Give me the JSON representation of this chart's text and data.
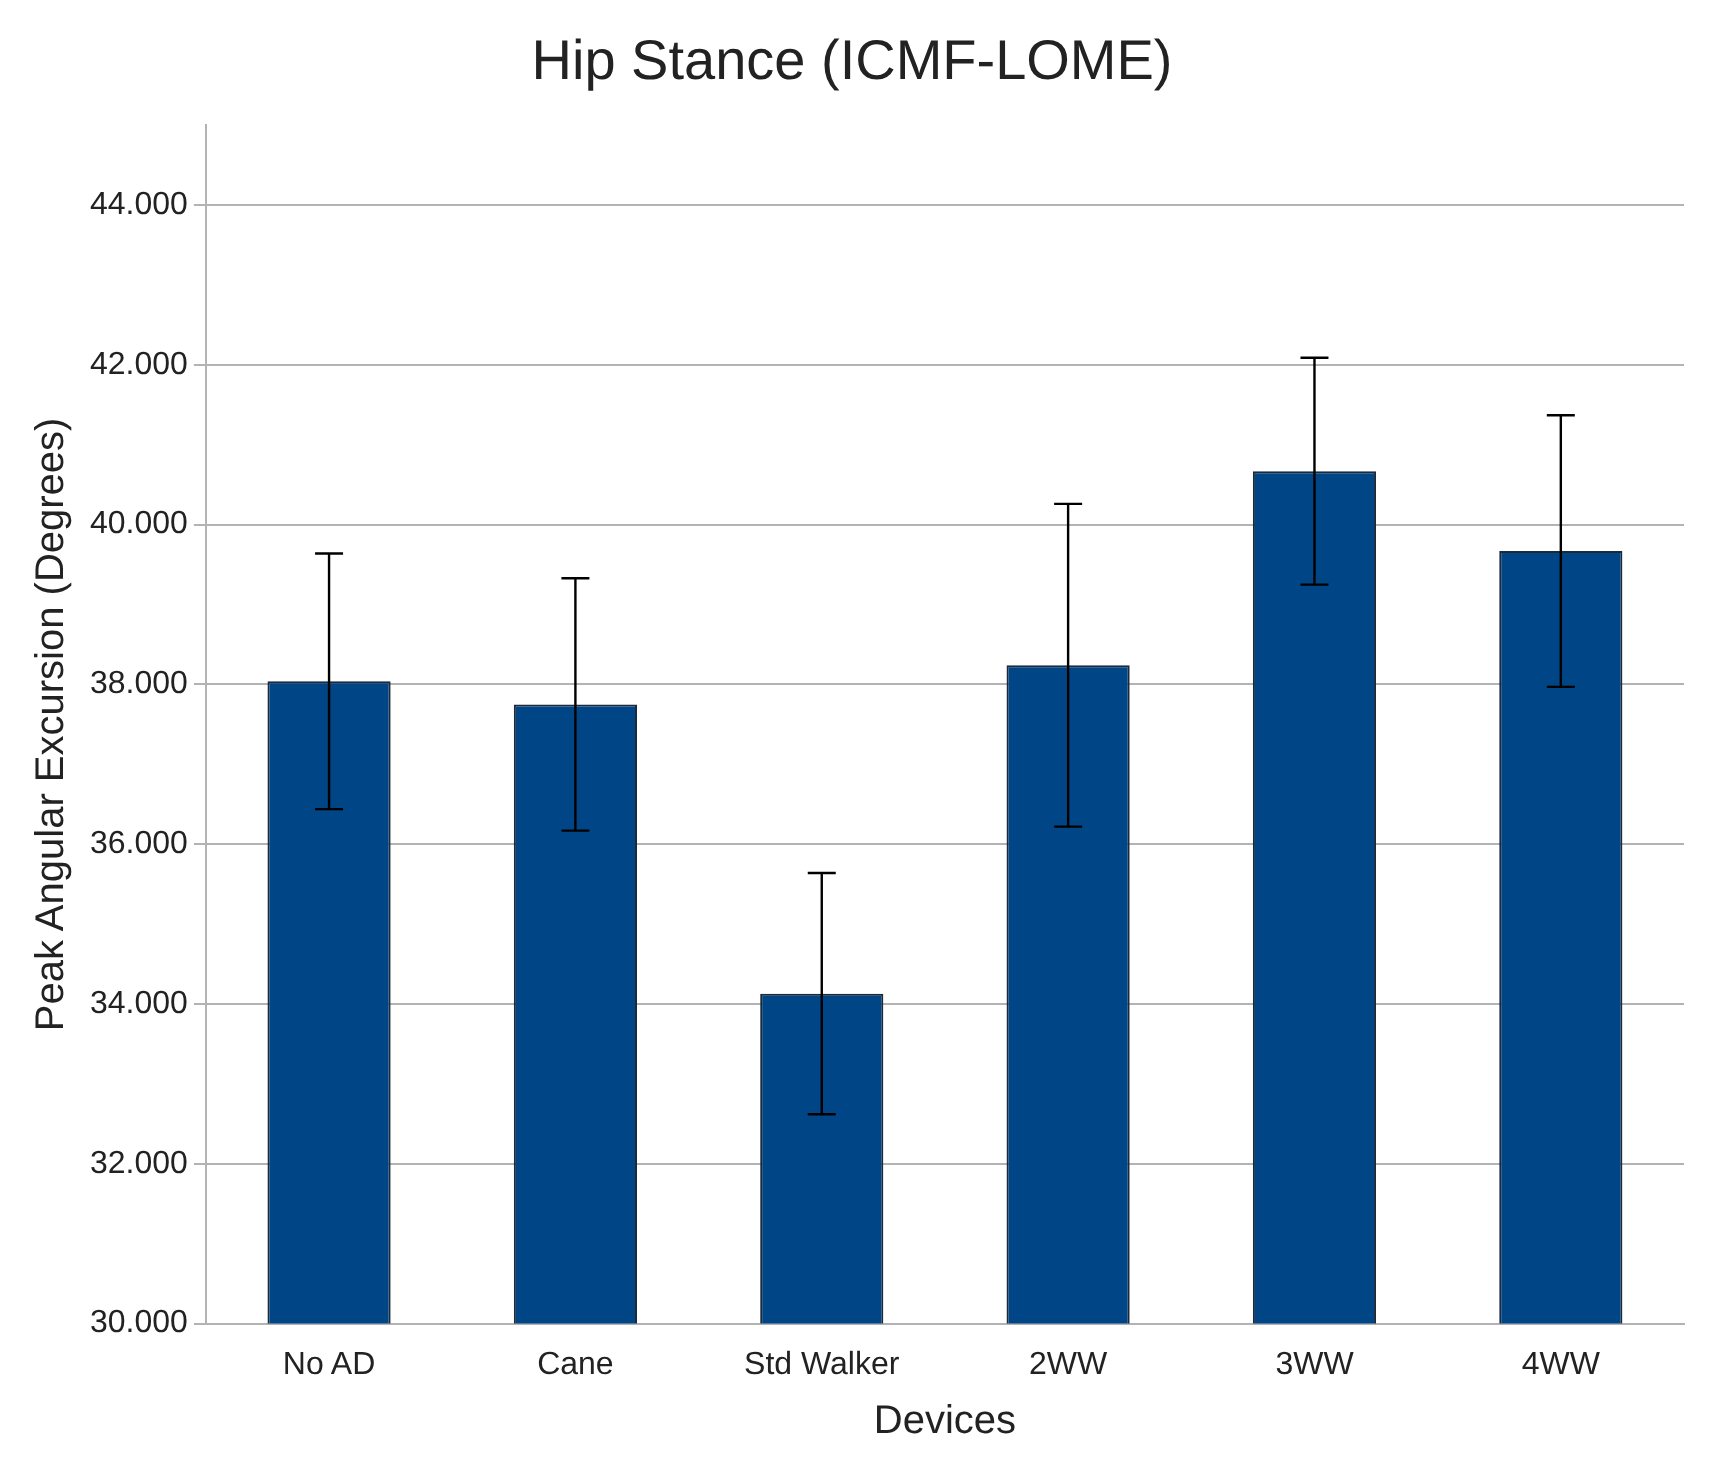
{
  "chart_data": {
    "type": "bar",
    "title": "Hip Stance (ICMF-LOME)",
    "xlabel": "Devices",
    "ylabel": "Peak Angular Excursion (Degrees)",
    "categories": [
      "No AD",
      "Cane",
      "Std Walker",
      "2WW",
      "3WW",
      "4WW"
    ],
    "values": [
      38.04,
      37.75,
      34.13,
      38.24,
      40.67,
      39.67
    ],
    "errors": [
      1.6,
      1.58,
      1.51,
      2.02,
      1.42,
      1.7
    ],
    "color": "#004586",
    "ylim": [
      30,
      45
    ],
    "yticks": [
      {
        "value": 30,
        "label": "30.000"
      },
      {
        "value": 32,
        "label": "32.000"
      },
      {
        "value": 34,
        "label": "34.000"
      },
      {
        "value": 36,
        "label": "36.000"
      },
      {
        "value": 38,
        "label": "38.000"
      },
      {
        "value": 40,
        "label": "40.000"
      },
      {
        "value": 42,
        "label": "42.000"
      },
      {
        "value": 44,
        "label": "44.000"
      }
    ],
    "grid": "y"
  }
}
